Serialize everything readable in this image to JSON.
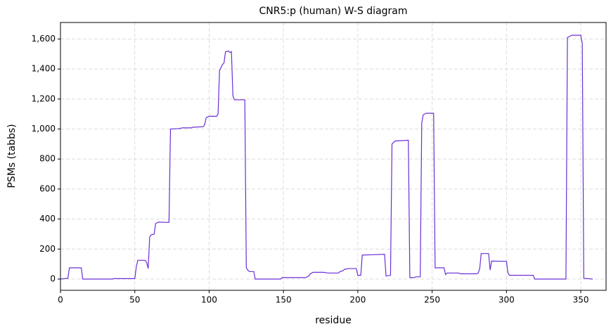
{
  "chart_data": {
    "type": "line",
    "title": "CNR5:p (human) W-S diagram",
    "x_label": "residue",
    "y_label": "PSMs (tabbs)",
    "x": [
      0,
      5,
      6,
      14,
      15,
      25,
      35,
      36,
      50,
      51,
      52,
      57,
      58,
      59,
      60,
      61,
      63,
      64,
      66,
      70,
      73,
      74,
      80,
      82,
      88,
      89,
      96,
      97,
      98,
      100,
      105,
      106,
      107,
      109,
      110,
      111,
      113,
      114,
      115,
      116,
      117,
      124,
      125,
      126,
      127,
      130,
      131,
      148,
      149,
      165,
      167,
      168,
      170,
      177,
      180,
      187,
      188,
      190,
      191,
      194,
      199,
      200,
      202,
      203,
      209,
      218,
      219,
      222,
      223,
      225,
      234,
      235,
      238,
      239,
      242,
      243,
      244,
      246,
      251,
      252,
      258,
      259,
      260,
      268,
      269,
      280,
      281,
      282,
      283,
      288,
      289,
      290,
      300,
      301,
      302,
      318,
      319,
      340,
      341,
      344,
      350,
      351,
      352,
      358
    ],
    "series": [
      {
        "name": "PSMs",
        "color": "#6a2fd6",
        "values": [
          0,
          5,
          75,
          75,
          0,
          0,
          0,
          3,
          3,
          80,
          125,
          125,
          110,
          70,
          280,
          295,
          300,
          370,
          380,
          378,
          378,
          1000,
          1003,
          1008,
          1008,
          1012,
          1015,
          1030,
          1075,
          1085,
          1085,
          1100,
          1390,
          1430,
          1440,
          1515,
          1520,
          1510,
          1515,
          1220,
          1195,
          1195,
          75,
          60,
          50,
          50,
          0,
          0,
          10,
          10,
          20,
          35,
          45,
          45,
          40,
          40,
          50,
          55,
          65,
          70,
          70,
          25,
          25,
          160,
          162,
          165,
          20,
          25,
          900,
          920,
          925,
          10,
          10,
          15,
          15,
          1040,
          1095,
          1105,
          1105,
          75,
          75,
          30,
          40,
          40,
          35,
          35,
          40,
          70,
          170,
          170,
          60,
          120,
          118,
          40,
          25,
          25,
          0,
          0,
          1610,
          1625,
          1625,
          1570,
          5,
          0
        ]
      }
    ],
    "xlim": [
      0,
      367
    ],
    "ylim": [
      -75,
      1710
    ],
    "xticks": [
      0,
      50,
      100,
      150,
      200,
      250,
      300,
      350
    ],
    "yticks": [
      0,
      200,
      400,
      600,
      800,
      {
        "value": 1000,
        "label": "1,000"
      },
      {
        "value": 1200,
        "label": "1,200"
      },
      {
        "value": 1400,
        "label": "1,400"
      },
      {
        "value": 1600,
        "label": "1,600"
      }
    ],
    "grid": true
  }
}
